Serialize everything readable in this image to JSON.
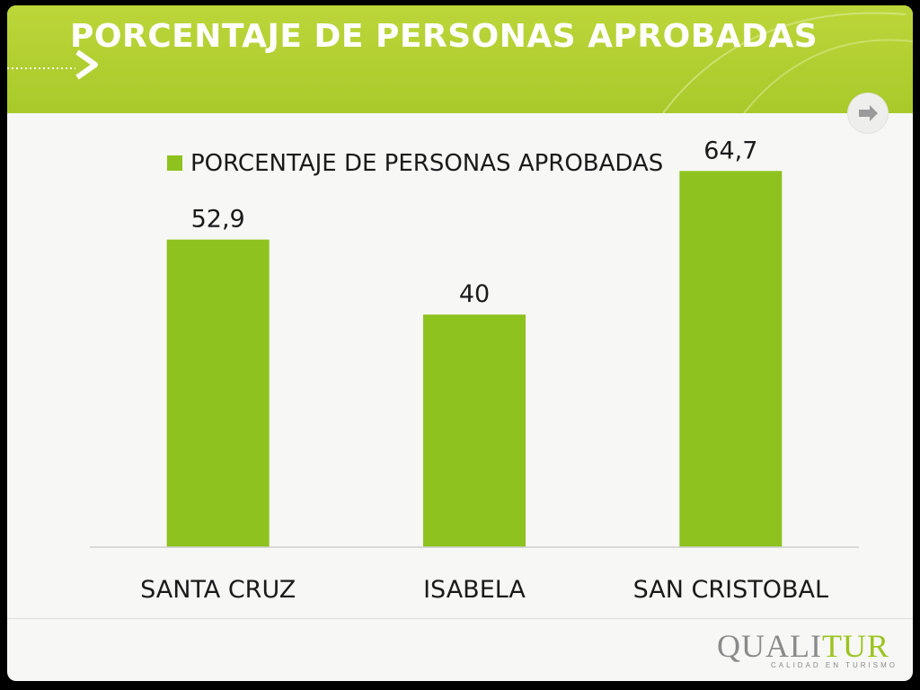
{
  "slide": {
    "title": "PORCENTAJE DE PERSONAS APROBADAS"
  },
  "chart_data": {
    "type": "bar",
    "title": "",
    "categories": [
      "SANTA CRUZ",
      "ISABELA",
      "SAN CRISTOBAL"
    ],
    "series": [
      {
        "name": "PORCENTAJE DE PERSONAS APROBADAS",
        "values": [
          52.9,
          40,
          64.7
        ],
        "color": "#8dc21f"
      }
    ],
    "data_labels": [
      "52,9",
      "40",
      "64,7"
    ],
    "legend_position": "top",
    "ylim": [
      0,
      70
    ],
    "grid": false,
    "xlabel": "",
    "ylabel": ""
  },
  "logo": {
    "word_part1": "QUALI",
    "word_part2": "TUR",
    "tagline": "CALIDAD EN TURISMO"
  },
  "icons": {
    "nav_arrow": "right-arrow-icon",
    "title_chevron": "chevron-right-icon"
  },
  "colors": {
    "header": "#b5d334",
    "bar": "#8dc21f"
  }
}
